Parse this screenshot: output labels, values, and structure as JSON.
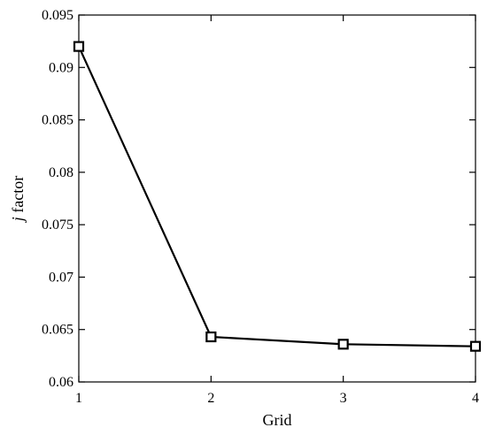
{
  "chart_data": {
    "type": "line",
    "title": "",
    "xlabel": "Grid",
    "ylabel_italic": "j",
    "ylabel_rest": " factor",
    "x": [
      1,
      2,
      3,
      4
    ],
    "x_tick_labels": [
      "1",
      "2",
      "3",
      "4"
    ],
    "y_tick_values": [
      0.06,
      0.065,
      0.07,
      0.075,
      0.08,
      0.085,
      0.09,
      0.095
    ],
    "y_tick_labels": [
      "0.06",
      "0.065",
      "0.07",
      "0.075",
      "0.08",
      "0.085",
      "0.09",
      "0.095"
    ],
    "xlim": [
      1,
      4
    ],
    "ylim": [
      0.06,
      0.095
    ],
    "grid": false,
    "series": [
      {
        "values": [
          0.092,
          0.0643,
          0.0636,
          0.0634
        ],
        "marker": "square-open",
        "color": "#000000"
      }
    ]
  }
}
